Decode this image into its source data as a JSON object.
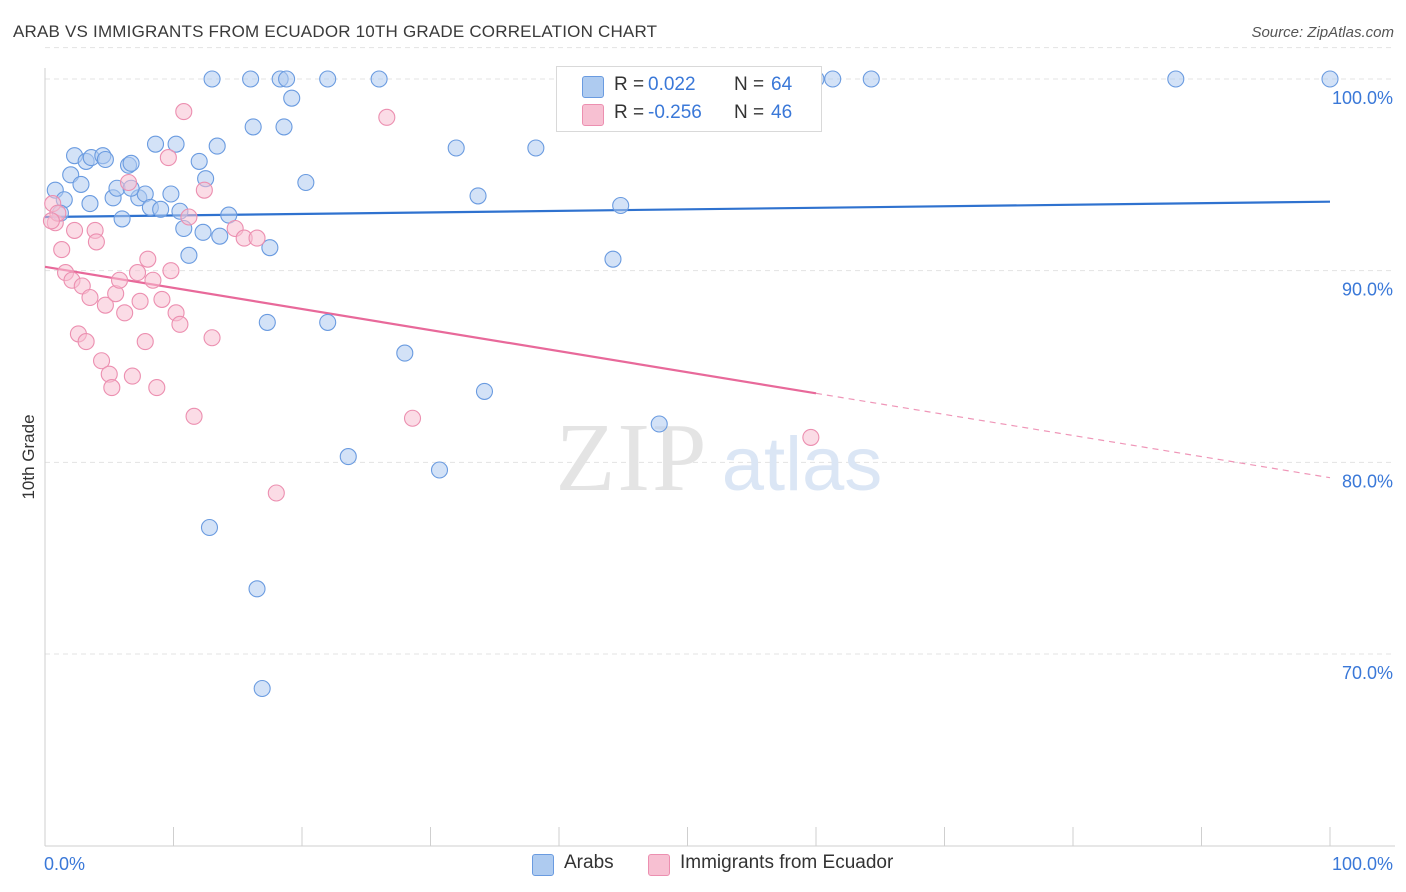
{
  "title": "ARAB VS IMMIGRANTS FROM ECUADOR 10TH GRADE CORRELATION CHART",
  "source": "Source: ZipAtlas.com",
  "watermark": {
    "zip": "ZIP",
    "atlas": "atlas"
  },
  "legend": {
    "rows": [
      {
        "r_label": "R =",
        "r_value": "0.022",
        "n_label": "N =",
        "n_value": "64"
      },
      {
        "r_label": "R =",
        "r_value": "-0.256",
        "n_label": "N =",
        "n_value": "46"
      }
    ]
  },
  "bottom_legend": {
    "arabs": "Arabs",
    "ecuador": "Immigrants from Ecuador"
  },
  "colors": {
    "blue_fill": "#aecbf0",
    "blue_stroke": "#6a9be0",
    "blue_line": "#2f72cf",
    "pink_fill": "#f7c0d2",
    "pink_stroke": "#ec8fb0",
    "pink_line": "#e8699a",
    "axis_label": "#3a78d8",
    "grid": "#e3e3e3"
  },
  "chart_data": {
    "type": "scatter",
    "title": "ARAB VS IMMIGRANTS FROM ECUADOR 10TH GRADE CORRELATION CHART",
    "xlabel": "",
    "ylabel": "10th Grade",
    "xlim": [
      0,
      100
    ],
    "ylim": [
      60,
      102
    ],
    "x_tick_labels": [
      "0.0%",
      "100.0%"
    ],
    "y_ticks": [
      70,
      80,
      90,
      100
    ],
    "y_tick_labels": [
      "70.0%",
      "80.0%",
      "90.0%",
      "100.0%"
    ],
    "grid": true,
    "legend_position": "top-center",
    "series": [
      {
        "name": "Arabs",
        "color": "#6a9be0",
        "R": 0.022,
        "N": 64,
        "trend": {
          "x": [
            0,
            100
          ],
          "y": [
            92.8,
            93.6
          ],
          "solid_to": 100
        },
        "points": [
          [
            0.8,
            94.2
          ],
          [
            1.5,
            93.7
          ],
          [
            1.2,
            93.0
          ],
          [
            2.0,
            95.0
          ],
          [
            2.3,
            96.0
          ],
          [
            2.8,
            94.5
          ],
          [
            3.2,
            95.7
          ],
          [
            3.5,
            93.5
          ],
          [
            3.6,
            95.9
          ],
          [
            4.5,
            96.0
          ],
          [
            4.7,
            95.8
          ],
          [
            5.3,
            93.8
          ],
          [
            5.6,
            94.3
          ],
          [
            6.0,
            92.7
          ],
          [
            6.5,
            95.5
          ],
          [
            6.7,
            95.6
          ],
          [
            7.3,
            93.8
          ],
          [
            7.8,
            94.0
          ],
          [
            8.2,
            93.3
          ],
          [
            8.6,
            96.6
          ],
          [
            9.0,
            93.2
          ],
          [
            9.8,
            94.0
          ],
          [
            10.2,
            96.6
          ],
          [
            10.5,
            93.1
          ],
          [
            10.8,
            92.2
          ],
          [
            11.2,
            90.8
          ],
          [
            12.0,
            95.7
          ],
          [
            12.3,
            92.0
          ],
          [
            12.5,
            94.8
          ],
          [
            13.4,
            96.5
          ],
          [
            13.6,
            91.8
          ],
          [
            14.3,
            92.9
          ],
          [
            13.0,
            100.0
          ],
          [
            16.0,
            100.0
          ],
          [
            18.3,
            100.0
          ],
          [
            18.8,
            100.0
          ],
          [
            22.0,
            100.0
          ],
          [
            26.0,
            100.0
          ],
          [
            16.2,
            97.5
          ],
          [
            18.6,
            97.5
          ],
          [
            19.2,
            99.0
          ],
          [
            20.3,
            94.6
          ],
          [
            17.5,
            91.2
          ],
          [
            17.3,
            87.3
          ],
          [
            22.0,
            87.3
          ],
          [
            28.0,
            85.7
          ],
          [
            23.6,
            80.3
          ],
          [
            30.7,
            79.6
          ],
          [
            34.2,
            83.7
          ],
          [
            32.0,
            96.4
          ],
          [
            33.7,
            93.9
          ],
          [
            38.2,
            96.4
          ],
          [
            44.2,
            90.6
          ],
          [
            44.8,
            93.4
          ],
          [
            47.8,
            82.0
          ],
          [
            60.0,
            100.0
          ],
          [
            61.3,
            100.0
          ],
          [
            64.3,
            100.0
          ],
          [
            88.0,
            100.0
          ],
          [
            100.0,
            100.0
          ],
          [
            12.8,
            76.6
          ],
          [
            16.5,
            73.4
          ],
          [
            16.9,
            68.2
          ],
          [
            6.7,
            94.3
          ]
        ]
      },
      {
        "name": "Immigrants from Ecuador",
        "color": "#ec8fb0",
        "R": -0.256,
        "N": 46,
        "trend": {
          "x": [
            0,
            100
          ],
          "y": [
            90.2,
            79.2
          ],
          "solid_to": 60
        },
        "points": [
          [
            0.6,
            93.5
          ],
          [
            0.8,
            92.5
          ],
          [
            1.0,
            93.0
          ],
          [
            1.3,
            91.1
          ],
          [
            1.6,
            89.9
          ],
          [
            2.1,
            89.5
          ],
          [
            2.3,
            92.1
          ],
          [
            2.6,
            86.7
          ],
          [
            2.9,
            89.2
          ],
          [
            3.2,
            86.3
          ],
          [
            3.5,
            88.6
          ],
          [
            3.9,
            92.1
          ],
          [
            4.0,
            91.5
          ],
          [
            4.4,
            85.3
          ],
          [
            4.7,
            88.2
          ],
          [
            5.0,
            84.6
          ],
          [
            5.2,
            83.9
          ],
          [
            5.5,
            88.8
          ],
          [
            5.8,
            89.5
          ],
          [
            6.2,
            87.8
          ],
          [
            6.5,
            94.6
          ],
          [
            6.8,
            84.5
          ],
          [
            7.2,
            89.9
          ],
          [
            7.4,
            88.4
          ],
          [
            7.8,
            86.3
          ],
          [
            8.0,
            90.6
          ],
          [
            8.4,
            89.5
          ],
          [
            8.7,
            83.9
          ],
          [
            9.1,
            88.5
          ],
          [
            9.6,
            95.9
          ],
          [
            9.8,
            90.0
          ],
          [
            10.2,
            87.8
          ],
          [
            10.5,
            87.2
          ],
          [
            10.8,
            98.3
          ],
          [
            11.2,
            92.8
          ],
          [
            11.6,
            82.4
          ],
          [
            12.4,
            94.2
          ],
          [
            13.0,
            86.5
          ],
          [
            14.8,
            92.2
          ],
          [
            15.5,
            91.7
          ],
          [
            16.5,
            91.7
          ],
          [
            18.0,
            78.4
          ],
          [
            26.6,
            98.0
          ],
          [
            28.6,
            82.3
          ],
          [
            59.6,
            81.3
          ],
          [
            0.5,
            92.6
          ]
        ]
      }
    ]
  }
}
